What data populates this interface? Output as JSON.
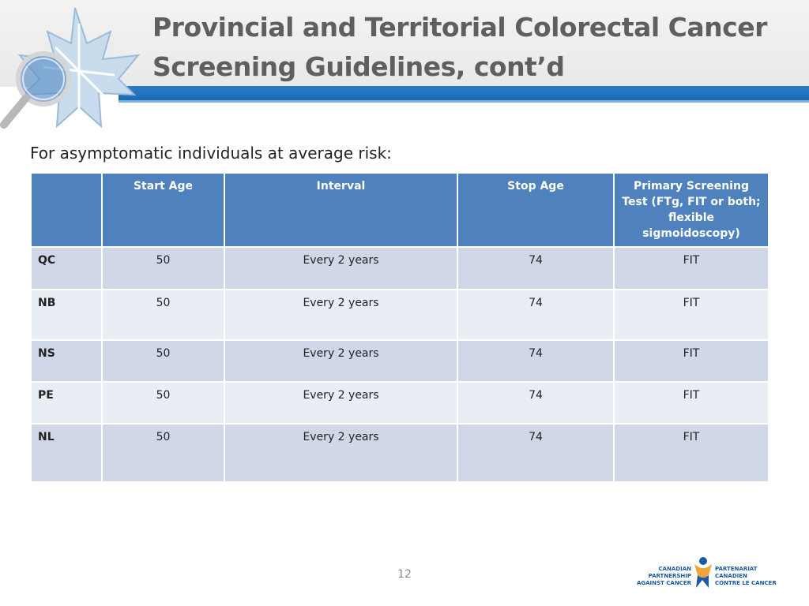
{
  "slide": {
    "title_line1": "Provincial and Territorial Colorectal Cancer",
    "title_line2": "Screening Guidelines, cont’d",
    "intro": "For asymptomatic individuals at average risk:",
    "page_number": "12"
  },
  "table": {
    "headers": [
      "",
      "Start Age",
      "Interval",
      "Stop Age",
      "Primary Screening Test (FTg, FIT or both; flexible sigmoidoscopy)"
    ],
    "rows": [
      [
        "QC",
        "50",
        "Every 2 years",
        "74",
        "FIT"
      ],
      [
        "NB",
        "50",
        "Every 2 years",
        "74",
        "FIT"
      ],
      [
        "NS",
        "50",
        "Every 2 years",
        "74",
        "FIT"
      ],
      [
        "PE",
        "50",
        "Every 2 years",
        "74",
        "FIT"
      ],
      [
        "NL",
        "50",
        "Every 2 years",
        "74",
        "FIT"
      ]
    ]
  },
  "branding": {
    "logo_left_icon": "maple-leaf-magnifier-icon",
    "partner_en_line1": "CANADIAN PARTNERSHIP",
    "partner_en_line2": "AGAINST CANCER",
    "partner_fr_line1": "PARTENARIAT CANADIEN",
    "partner_fr_line2": "CONTRE LE CANCER",
    "accent_blue": "#1b6bb3",
    "header_fill": "#4f81bd",
    "row_odd": "#d0d8e8",
    "row_even": "#e9edf4"
  }
}
